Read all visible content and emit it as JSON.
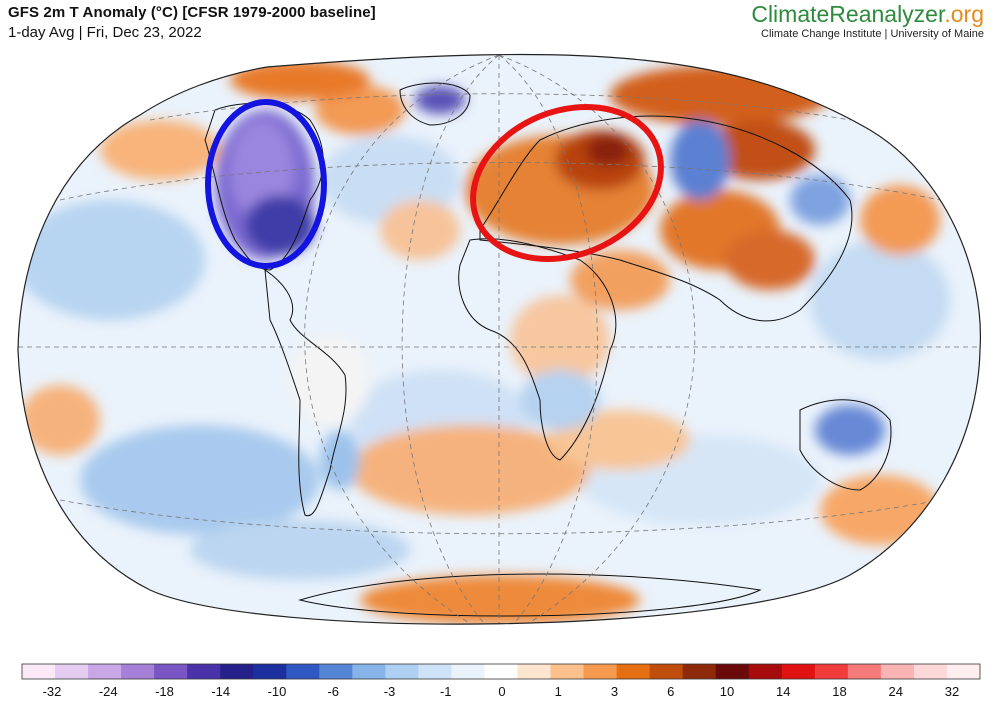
{
  "header": {
    "title": "GFS 2m T Anomaly (°C) [CFSR 1979-2000 baseline]",
    "subtitle": "1-day Avg | Fri, Dec 23, 2022"
  },
  "brand": {
    "name_part1": "ClimateReanalyzer",
    "name_part2": ".org",
    "tagline": "Climate Change Institute | University of Maine"
  },
  "colorbar": {
    "labels": [
      "-32",
      "-24",
      "-18",
      "-14",
      "-10",
      "-6",
      "-3",
      "-1",
      "0",
      "1",
      "3",
      "6",
      "10",
      "14",
      "18",
      "24",
      "32"
    ],
    "colors": [
      "#fbe9f7",
      "#e4cdf0",
      "#c9a6e6",
      "#a67fd9",
      "#7a55c4",
      "#4a33a8",
      "#26208a",
      "#1b2f9e",
      "#2f58c2",
      "#5586d6",
      "#86b4e8",
      "#aed0f2",
      "#cfe3f8",
      "#eaf3fc",
      "#ffffff",
      "#fde5cf",
      "#fbc08c",
      "#f59a4e",
      "#e56f12",
      "#c04d0b",
      "#8d2a0a",
      "#6b0a0a",
      "#a80b0b",
      "#e01212",
      "#f23c3c",
      "#f77a7a",
      "#fbb4b4",
      "#fdd8d8",
      "#ffeef0"
    ]
  },
  "annotations": {
    "ellipse_colors": {
      "cold": "#1414e0",
      "warm": "#e81414"
    }
  },
  "map": {
    "ocean_base": "#eef5fc",
    "projection": "Winkel Tripel"
  }
}
